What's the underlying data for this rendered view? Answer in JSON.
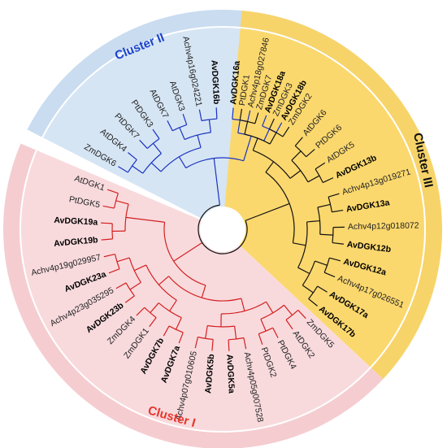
{
  "clusters": [
    {
      "id": "c1",
      "label": "Cluster I",
      "color": "#e8352b",
      "band_color": "#f5cdd0",
      "fill_color": "#f8dadd"
    },
    {
      "id": "c2",
      "label": "Cluster II",
      "color": "#1a44cc",
      "band_color": "#c9dcf0",
      "fill_color": "#d6e5f4"
    },
    {
      "id": "c3",
      "label": "Cluster III",
      "color": "#111111",
      "band_color": "#f7d46a",
      "fill_color": "#fbd86e"
    }
  ],
  "branch_colors": {
    "c1": "#d42020",
    "c2": "#1a33c0",
    "c3": "#111111"
  },
  "leaves": [
    {
      "name": "PtDGK1",
      "angle": -81,
      "bold": false,
      "cluster": "c3"
    },
    {
      "name": "ZmDGK7",
      "angle": -73,
      "bold": false,
      "cluster": "c3"
    },
    {
      "name": "ZmDGK3",
      "angle": -65,
      "bold": false,
      "cluster": "c3"
    },
    {
      "name": "ZmDGK2",
      "angle": -57,
      "bold": false,
      "cluster": "c3"
    },
    {
      "name": "AtDGK6",
      "angle": -49,
      "bold": false,
      "cluster": "c3"
    },
    {
      "name": "PtDGK6",
      "angle": -41,
      "bold": false,
      "cluster": "c3"
    },
    {
      "name": "AtDGK5",
      "angle": -33,
      "bold": false,
      "cluster": "c3"
    },
    {
      "name": "AvDGK13b",
      "angle": -25,
      "bold": true,
      "cluster": "c3"
    },
    {
      "name": "Achv4p13g019271",
      "angle": -17,
      "bold": false,
      "cluster": "c3"
    },
    {
      "name": "AvDGK13a",
      "angle": -9,
      "bold": true,
      "cluster": "c3"
    },
    {
      "name": "Achv4p12g018072",
      "angle": -1,
      "bold": false,
      "cluster": "c3"
    },
    {
      "name": "AvDGK12b",
      "angle": 7,
      "bold": true,
      "cluster": "c3"
    },
    {
      "name": "AvDGK12a",
      "angle": 15,
      "bold": true,
      "cluster": "c3"
    },
    {
      "name": "Achv4p17g026551",
      "angle": 23,
      "bold": false,
      "cluster": "c3"
    },
    {
      "name": "AvDGK17a",
      "angle": 31,
      "bold": true,
      "cluster": "c3"
    },
    {
      "name": "AvDGK17b",
      "angle": 39,
      "bold": true,
      "cluster": "c3"
    },
    {
      "name": "ZmDGK5",
      "angle": 47,
      "bold": false,
      "cluster": "c1"
    },
    {
      "name": "AtDGK2",
      "angle": 55,
      "bold": false,
      "cluster": "c1"
    },
    {
      "name": "PtDGK4",
      "angle": 63,
      "bold": false,
      "cluster": "c1"
    },
    {
      "name": "PtDGK2",
      "angle": 71,
      "bold": false,
      "cluster": "c1"
    },
    {
      "name": "Achv4p05g007528",
      "angle": 79,
      "bold": false,
      "cluster": "c1"
    },
    {
      "name": "AvDGK5a",
      "angle": 87,
      "bold": true,
      "cluster": "c1"
    },
    {
      "name": "AvDGK5b",
      "angle": 95,
      "bold": true,
      "cluster": "c1"
    },
    {
      "name": "Achv4p07g010605",
      "angle": 103,
      "bold": false,
      "cluster": "c1"
    },
    {
      "name": "AvDGK7a",
      "angle": 111,
      "bold": true,
      "cluster": "c1"
    },
    {
      "name": "AvDGK7b",
      "angle": 119,
      "bold": true,
      "cluster": "c1"
    },
    {
      "name": "ZmDGK1",
      "angle": 127,
      "bold": false,
      "cluster": "c1"
    },
    {
      "name": "ZmDGK4",
      "angle": 135,
      "bold": false,
      "cluster": "c1"
    },
    {
      "name": "AvDGK23b",
      "angle": 143,
      "bold": true,
      "cluster": "c1"
    },
    {
      "name": "Achv4p23g035295",
      "angle": 151,
      "bold": false,
      "cluster": "c1"
    },
    {
      "name": "AvDGK23a",
      "angle": 159,
      "bold": true,
      "cluster": "c1"
    },
    {
      "name": "Achv4p19g029957",
      "angle": 167,
      "bold": false,
      "cluster": "c1"
    },
    {
      "name": "AvDGK19b",
      "angle": 175,
      "bold": true,
      "cluster": "c1"
    },
    {
      "name": "AvDGK19a",
      "angle": 183,
      "bold": true,
      "cluster": "c1"
    },
    {
      "name": "PtDGK5",
      "angle": 191,
      "bold": false,
      "cluster": "c1"
    },
    {
      "name": "AtDGK1",
      "angle": 199,
      "bold": false,
      "cluster": "c1"
    },
    {
      "name": "ZmDGK6",
      "angle": 211,
      "bold": false,
      "cluster": "c2"
    },
    {
      "name": "AtDGK4",
      "angle": 219,
      "bold": false,
      "cluster": "c2"
    },
    {
      "name": "PtDGK7",
      "angle": 227,
      "bold": false,
      "cluster": "c2"
    },
    {
      "name": "PtDGK3",
      "angle": 235,
      "bold": false,
      "cluster": "c2"
    },
    {
      "name": "AtDGK7",
      "angle": 243,
      "bold": false,
      "cluster": "c2"
    },
    {
      "name": "AtDGK3",
      "angle": 251,
      "bold": false,
      "cluster": "c2"
    },
    {
      "name": "Achv4p16g024221",
      "angle": 259,
      "bold": false,
      "cluster": "c2"
    },
    {
      "name": "AvDGK16b",
      "angle": 267,
      "bold": true,
      "cluster": "c2"
    },
    {
      "name": "AvDGK16a",
      "angle": 275,
      "bold": true,
      "cluster": "c2"
    },
    {
      "name": "Achv4p18g027846",
      "angle": 283,
      "bold": false,
      "cluster": "c2"
    },
    {
      "name": "AvDGK18a",
      "angle": 291,
      "bold": true,
      "cluster": "c2"
    },
    {
      "name": "AvDGK18b",
      "angle": 299,
      "bold": true,
      "cluster": "c2"
    }
  ]
}
